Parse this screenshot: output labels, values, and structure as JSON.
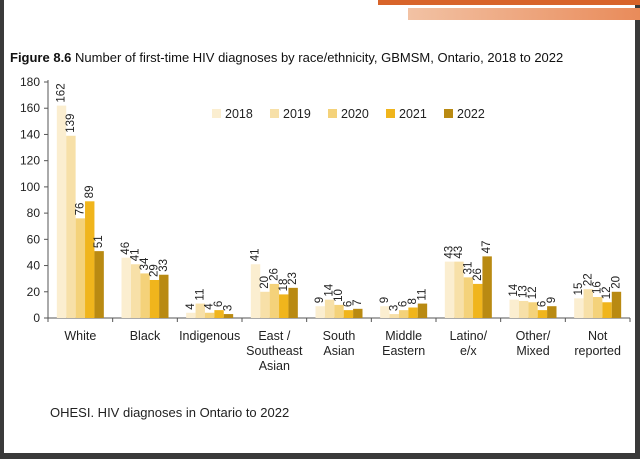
{
  "figure_label": "Figure 8.6",
  "title_text": "Number of first-time HIV diagnoses by race/ethnicity, GBMSM, Ontario, 2018 to 2022",
  "source_note": "OHESI. HIV diagnoses in Ontario to 2022",
  "colors": {
    "2018": "#fbeed0",
    "2019": "#f7e0a8",
    "2020": "#f4d27a",
    "2021": "#f0b51c",
    "2022": "#b98a12",
    "frame": "#3a3a3a",
    "accent": "#d8642a"
  },
  "chart_data": {
    "type": "bar",
    "title": "Figure 8.6 Number of first-time HIV diagnoses by race/ethnicity, GBMSM, Ontario, 2018 to 2022",
    "xlabel": "",
    "ylabel": "",
    "ylim": [
      0,
      180
    ],
    "yticks": [
      0,
      20,
      40,
      60,
      80,
      100,
      120,
      140,
      160,
      180
    ],
    "grid": false,
    "legend_position": "top-center",
    "categories": [
      "White",
      "Black",
      "Indigenous",
      "East / Southeast Asian",
      "South Asian",
      "Middle Eastern",
      "Latino/ e/x",
      "Other/ Mixed",
      "Not reported"
    ],
    "category_lines": [
      [
        "White"
      ],
      [
        "Black"
      ],
      [
        "Indigenous"
      ],
      [
        "East /",
        "Southeast",
        "Asian"
      ],
      [
        "South",
        "Asian"
      ],
      [
        "Middle",
        "Eastern"
      ],
      [
        "Latino/",
        "e/x"
      ],
      [
        "Other/",
        "Mixed"
      ],
      [
        "Not",
        "reported"
      ]
    ],
    "series": [
      {
        "name": "2018",
        "values": [
          162,
          46,
          4,
          41,
          9,
          9,
          43,
          14,
          15
        ]
      },
      {
        "name": "2019",
        "values": [
          139,
          41,
          11,
          20,
          14,
          3,
          43,
          13,
          22
        ]
      },
      {
        "name": "2020",
        "values": [
          76,
          34,
          4,
          26,
          10,
          6,
          31,
          12,
          16
        ]
      },
      {
        "name": "2021",
        "values": [
          89,
          29,
          6,
          18,
          6,
          8,
          26,
          6,
          12
        ]
      },
      {
        "name": "2022",
        "values": [
          51,
          33,
          3,
          23,
          7,
          11,
          47,
          9,
          20
        ]
      }
    ]
  }
}
